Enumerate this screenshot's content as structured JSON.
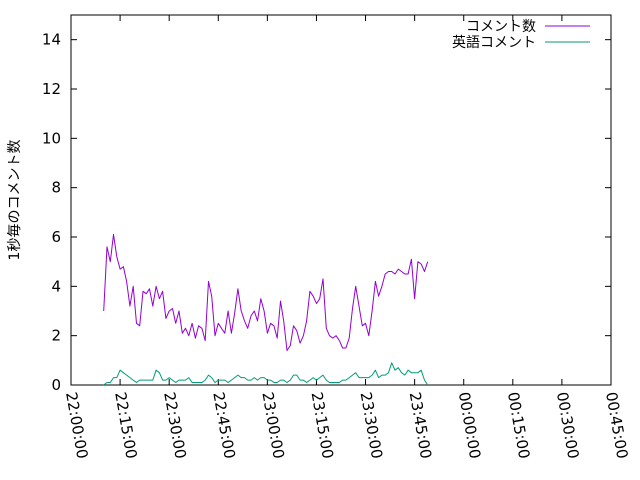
{
  "chart_data": {
    "type": "line",
    "ylabel": "1秒毎のコメント数",
    "ylim": [
      0,
      15
    ],
    "yticks": [
      "0",
      "2",
      "4",
      "6",
      "8",
      "10",
      "12",
      "14"
    ],
    "xlim": [
      "22:00:00",
      "00:45:00"
    ],
    "xticks": [
      "22:00:00",
      "22:15:00",
      "22:30:00",
      "22:45:00",
      "23:00:00",
      "23:15:00",
      "23:30:00",
      "23:45:00",
      "00:00:00",
      "00:15:00",
      "00:30:00",
      "00:45:00"
    ],
    "legend_position": "top-right",
    "grid": false,
    "series": [
      {
        "name": "コメント数",
        "color": "#9400d3",
        "points": [
          [
            "22:10:00",
            3.0
          ],
          [
            "22:11:00",
            5.6
          ],
          [
            "22:12:00",
            5.0
          ],
          [
            "22:13:00",
            6.1
          ],
          [
            "22:14:00",
            5.2
          ],
          [
            "22:15:00",
            4.7
          ],
          [
            "22:16:00",
            4.8
          ],
          [
            "22:17:00",
            4.2
          ],
          [
            "22:18:00",
            3.2
          ],
          [
            "22:19:00",
            4.0
          ],
          [
            "22:20:00",
            2.5
          ],
          [
            "22:21:00",
            2.4
          ],
          [
            "22:22:00",
            3.8
          ],
          [
            "22:23:00",
            3.7
          ],
          [
            "22:24:00",
            3.9
          ],
          [
            "22:25:00",
            3.2
          ],
          [
            "22:26:00",
            4.0
          ],
          [
            "22:27:00",
            3.5
          ],
          [
            "22:28:00",
            3.8
          ],
          [
            "22:29:00",
            2.7
          ],
          [
            "22:30:00",
            3.0
          ],
          [
            "22:31:00",
            3.1
          ],
          [
            "22:32:00",
            2.5
          ],
          [
            "22:33:00",
            3.0
          ],
          [
            "22:34:00",
            2.1
          ],
          [
            "22:35:00",
            2.3
          ],
          [
            "22:36:00",
            2.0
          ],
          [
            "22:37:00",
            2.5
          ],
          [
            "22:38:00",
            1.9
          ],
          [
            "22:39:00",
            2.4
          ],
          [
            "22:40:00",
            2.3
          ],
          [
            "22:41:00",
            1.8
          ],
          [
            "22:42:00",
            4.2
          ],
          [
            "22:43:00",
            3.6
          ],
          [
            "22:44:00",
            2.0
          ],
          [
            "22:45:00",
            2.5
          ],
          [
            "22:46:00",
            2.3
          ],
          [
            "22:47:00",
            2.1
          ],
          [
            "22:48:00",
            3.0
          ],
          [
            "22:49:00",
            2.1
          ],
          [
            "22:50:00",
            2.9
          ],
          [
            "22:51:00",
            3.9
          ],
          [
            "22:52:00",
            3.0
          ],
          [
            "22:53:00",
            2.6
          ],
          [
            "22:54:00",
            2.3
          ],
          [
            "22:55:00",
            2.8
          ],
          [
            "22:56:00",
            3.0
          ],
          [
            "22:57:00",
            2.6
          ],
          [
            "22:58:00",
            3.5
          ],
          [
            "22:59:00",
            3.0
          ],
          [
            "23:00:00",
            2.1
          ],
          [
            "23:01:00",
            2.5
          ],
          [
            "23:02:00",
            2.4
          ],
          [
            "23:03:00",
            1.9
          ],
          [
            "23:04:00",
            3.4
          ],
          [
            "23:05:00",
            2.6
          ],
          [
            "23:06:00",
            1.4
          ],
          [
            "23:07:00",
            1.6
          ],
          [
            "23:08:00",
            2.4
          ],
          [
            "23:09:00",
            2.2
          ],
          [
            "23:10:00",
            1.7
          ],
          [
            "23:11:00",
            2.0
          ],
          [
            "23:12:00",
            2.6
          ],
          [
            "23:13:00",
            3.8
          ],
          [
            "23:14:00",
            3.6
          ],
          [
            "23:15:00",
            3.3
          ],
          [
            "23:16:00",
            3.5
          ],
          [
            "23:17:00",
            4.3
          ],
          [
            "23:18:00",
            2.3
          ],
          [
            "23:19:00",
            2.0
          ],
          [
            "23:20:00",
            1.9
          ],
          [
            "23:21:00",
            2.0
          ],
          [
            "23:22:00",
            1.8
          ],
          [
            "23:23:00",
            1.5
          ],
          [
            "23:24:00",
            1.5
          ],
          [
            "23:25:00",
            1.9
          ],
          [
            "23:26:00",
            3.1
          ],
          [
            "23:27:00",
            4.0
          ],
          [
            "23:28:00",
            3.2
          ],
          [
            "23:29:00",
            2.4
          ],
          [
            "23:30:00",
            2.5
          ],
          [
            "23:31:00",
            2.0
          ],
          [
            "23:32:00",
            3.0
          ],
          [
            "23:33:00",
            4.2
          ],
          [
            "23:34:00",
            3.6
          ],
          [
            "23:35:00",
            4.0
          ],
          [
            "23:36:00",
            4.5
          ],
          [
            "23:37:00",
            4.6
          ],
          [
            "23:38:00",
            4.6
          ],
          [
            "23:39:00",
            4.5
          ],
          [
            "23:40:00",
            4.7
          ],
          [
            "23:41:00",
            4.6
          ],
          [
            "23:42:00",
            4.5
          ],
          [
            "23:43:00",
            4.5
          ],
          [
            "23:44:00",
            5.1
          ],
          [
            "23:45:00",
            3.5
          ],
          [
            "23:46:00",
            5.0
          ],
          [
            "23:47:00",
            4.9
          ],
          [
            "23:48:00",
            4.6
          ],
          [
            "23:49:00",
            5.0
          ]
        ]
      },
      {
        "name": "英語コメント",
        "color": "#009e73",
        "points": [
          [
            "22:10:00",
            0.0
          ],
          [
            "22:11:00",
            0.1
          ],
          [
            "22:12:00",
            0.1
          ],
          [
            "22:13:00",
            0.3
          ],
          [
            "22:14:00",
            0.3
          ],
          [
            "22:15:00",
            0.6
          ],
          [
            "22:16:00",
            0.5
          ],
          [
            "22:17:00",
            0.4
          ],
          [
            "22:18:00",
            0.3
          ],
          [
            "22:19:00",
            0.2
          ],
          [
            "22:20:00",
            0.1
          ],
          [
            "22:21:00",
            0.2
          ],
          [
            "22:22:00",
            0.2
          ],
          [
            "22:23:00",
            0.2
          ],
          [
            "22:24:00",
            0.2
          ],
          [
            "22:25:00",
            0.2
          ],
          [
            "22:26:00",
            0.6
          ],
          [
            "22:27:00",
            0.5
          ],
          [
            "22:28:00",
            0.2
          ],
          [
            "22:29:00",
            0.2
          ],
          [
            "22:30:00",
            0.3
          ],
          [
            "22:31:00",
            0.2
          ],
          [
            "22:32:00",
            0.1
          ],
          [
            "22:33:00",
            0.2
          ],
          [
            "22:34:00",
            0.2
          ],
          [
            "22:35:00",
            0.2
          ],
          [
            "22:36:00",
            0.3
          ],
          [
            "22:37:00",
            0.1
          ],
          [
            "22:38:00",
            0.1
          ],
          [
            "22:39:00",
            0.1
          ],
          [
            "22:40:00",
            0.1
          ],
          [
            "22:41:00",
            0.2
          ],
          [
            "22:42:00",
            0.4
          ],
          [
            "22:43:00",
            0.3
          ],
          [
            "22:44:00",
            0.1
          ],
          [
            "22:45:00",
            0.2
          ],
          [
            "22:46:00",
            0.2
          ],
          [
            "22:47:00",
            0.2
          ],
          [
            "22:48:00",
            0.1
          ],
          [
            "22:49:00",
            0.2
          ],
          [
            "22:50:00",
            0.3
          ],
          [
            "22:51:00",
            0.4
          ],
          [
            "22:52:00",
            0.3
          ],
          [
            "22:53:00",
            0.3
          ],
          [
            "22:54:00",
            0.2
          ],
          [
            "22:55:00",
            0.2
          ],
          [
            "22:56:00",
            0.3
          ],
          [
            "22:57:00",
            0.2
          ],
          [
            "22:58:00",
            0.3
          ],
          [
            "22:59:00",
            0.3
          ],
          [
            "23:00:00",
            0.2
          ],
          [
            "23:01:00",
            0.2
          ],
          [
            "23:02:00",
            0.1
          ],
          [
            "23:03:00",
            0.1
          ],
          [
            "23:04:00",
            0.2
          ],
          [
            "23:05:00",
            0.2
          ],
          [
            "23:06:00",
            0.1
          ],
          [
            "23:07:00",
            0.2
          ],
          [
            "23:08:00",
            0.4
          ],
          [
            "23:09:00",
            0.4
          ],
          [
            "23:10:00",
            0.2
          ],
          [
            "23:11:00",
            0.2
          ],
          [
            "23:12:00",
            0.1
          ],
          [
            "23:13:00",
            0.2
          ],
          [
            "23:14:00",
            0.3
          ],
          [
            "23:15:00",
            0.2
          ],
          [
            "23:16:00",
            0.3
          ],
          [
            "23:17:00",
            0.4
          ],
          [
            "23:18:00",
            0.2
          ],
          [
            "23:19:00",
            0.1
          ],
          [
            "23:20:00",
            0.1
          ],
          [
            "23:21:00",
            0.1
          ],
          [
            "23:22:00",
            0.1
          ],
          [
            "23:23:00",
            0.2
          ],
          [
            "23:24:00",
            0.2
          ],
          [
            "23:25:00",
            0.3
          ],
          [
            "23:26:00",
            0.4
          ],
          [
            "23:27:00",
            0.5
          ],
          [
            "23:28:00",
            0.3
          ],
          [
            "23:29:00",
            0.3
          ],
          [
            "23:30:00",
            0.3
          ],
          [
            "23:31:00",
            0.3
          ],
          [
            "23:32:00",
            0.4
          ],
          [
            "23:33:00",
            0.6
          ],
          [
            "23:34:00",
            0.3
          ],
          [
            "23:35:00",
            0.4
          ],
          [
            "23:36:00",
            0.4
          ],
          [
            "23:37:00",
            0.5
          ],
          [
            "23:38:00",
            0.9
          ],
          [
            "23:39:00",
            0.6
          ],
          [
            "23:40:00",
            0.7
          ],
          [
            "23:41:00",
            0.5
          ],
          [
            "23:42:00",
            0.4
          ],
          [
            "23:43:00",
            0.6
          ],
          [
            "23:44:00",
            0.5
          ],
          [
            "23:45:00",
            0.5
          ],
          [
            "23:46:00",
            0.5
          ],
          [
            "23:47:00",
            0.6
          ],
          [
            "23:48:00",
            0.2
          ],
          [
            "23:49:00",
            0.0
          ]
        ]
      }
    ]
  }
}
